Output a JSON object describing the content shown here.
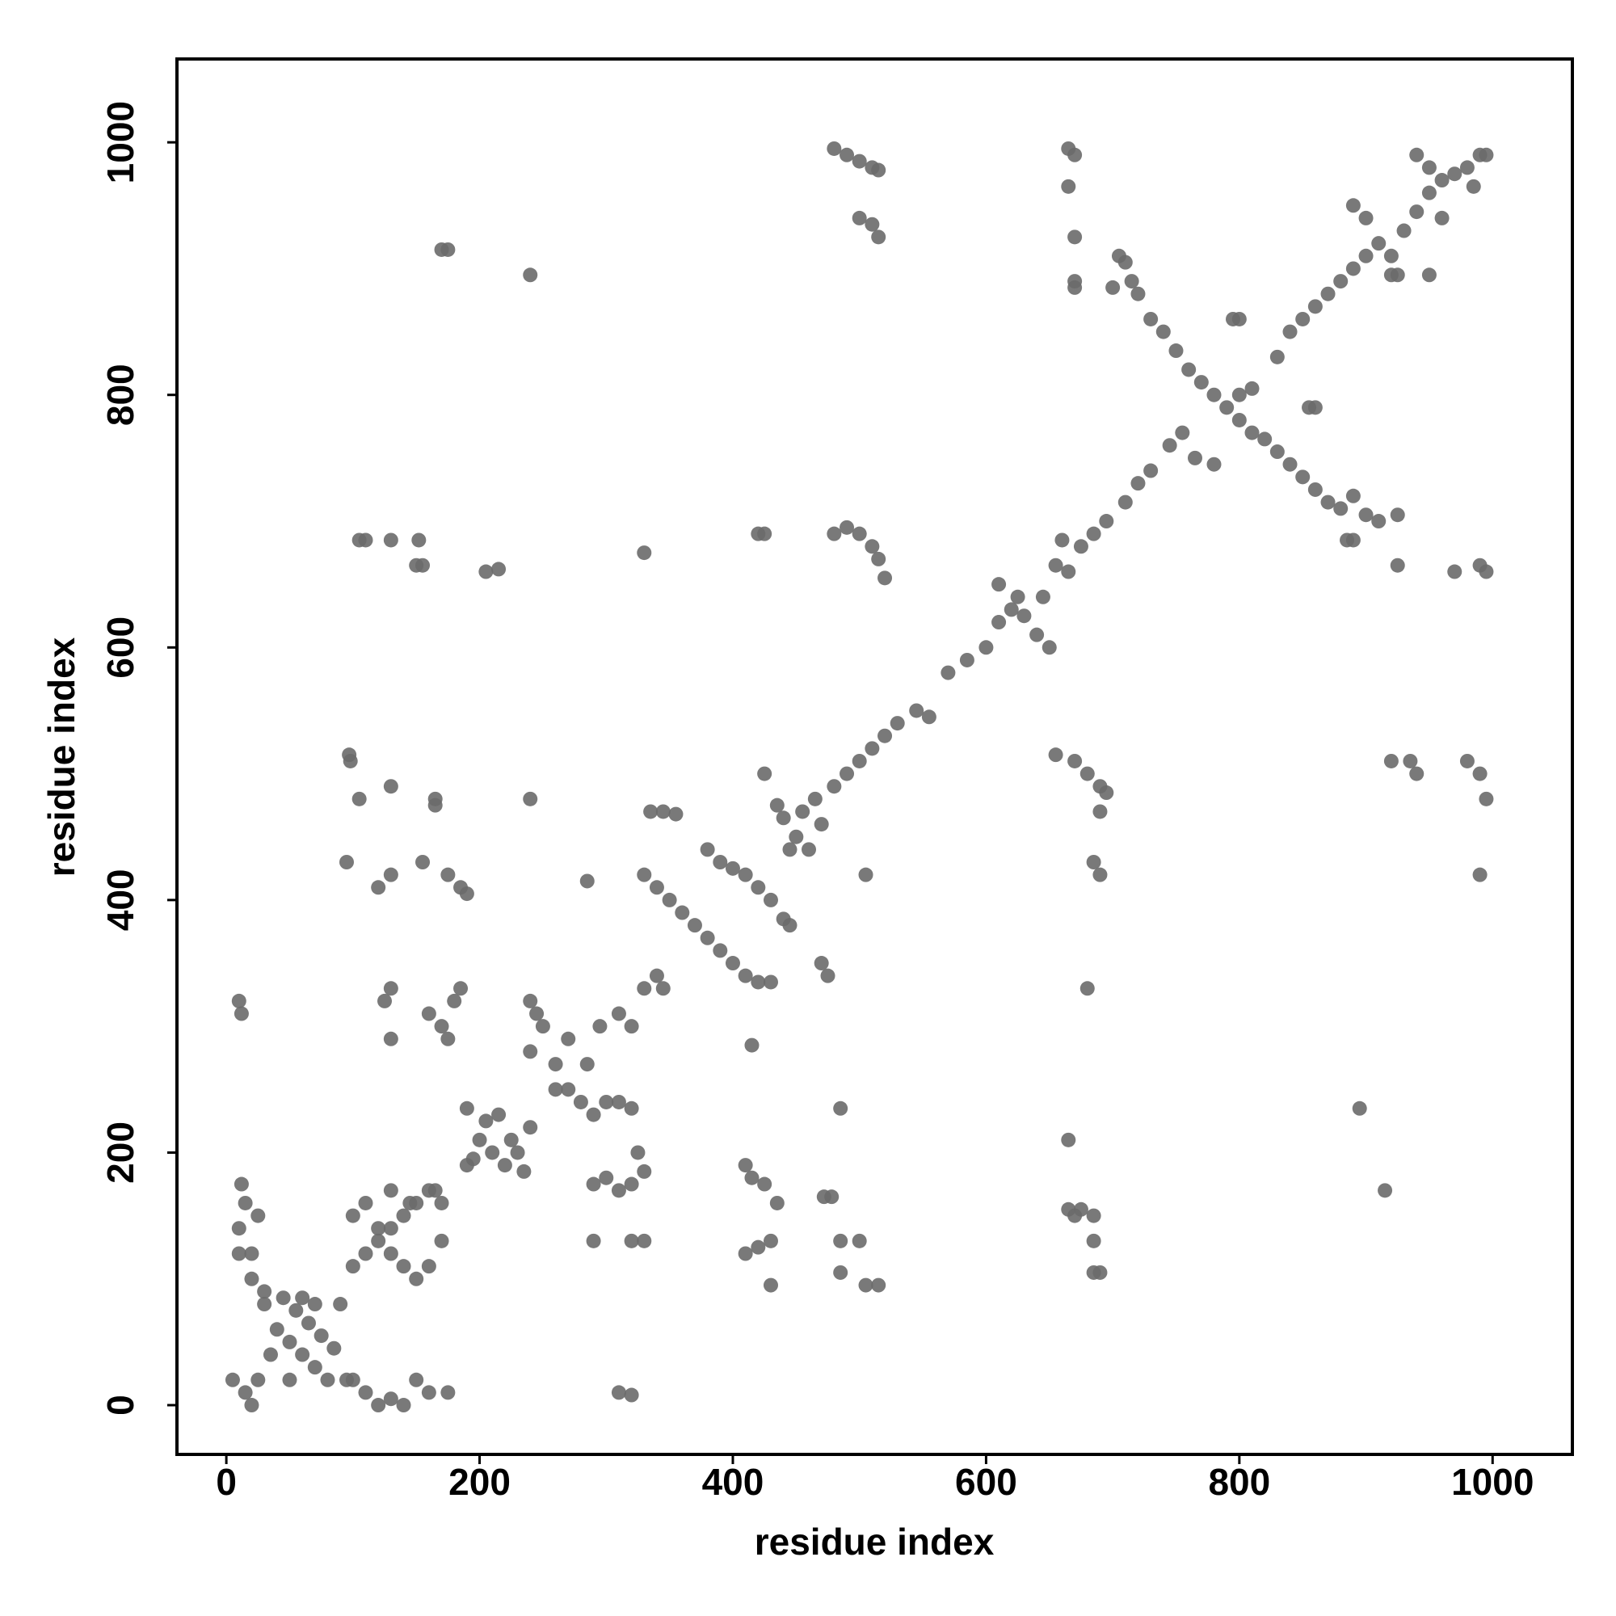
{
  "chart_data": {
    "type": "scatter",
    "xlabel": "residue index",
    "ylabel": "residue index",
    "xlim": [
      -39,
      1063
    ],
    "ylim": [
      -39,
      1066
    ],
    "xticks": [
      0,
      200,
      400,
      600,
      800,
      1000
    ],
    "yticks": [
      0,
      200,
      400,
      600,
      800,
      1000
    ],
    "color": "#6a6a6a",
    "grid": false,
    "x": [
      10,
      10,
      15,
      20,
      5,
      25,
      30,
      40,
      50,
      60,
      70,
      80,
      45,
      55,
      65,
      75,
      85,
      90,
      20,
      15,
      12,
      25,
      20,
      35,
      50,
      60,
      70,
      30,
      100,
      110,
      120,
      130,
      140,
      150,
      160,
      170,
      100,
      110,
      120,
      130,
      140,
      150,
      160,
      100,
      110,
      120,
      130,
      140,
      150,
      160,
      175,
      95,
      130,
      145,
      165,
      170,
      10,
      12,
      130,
      125,
      130,
      160,
      170,
      180,
      185,
      175,
      95,
      97,
      98,
      105,
      120,
      130,
      130,
      165,
      165,
      155,
      175,
      185,
      190,
      105,
      110,
      130,
      152,
      150,
      155,
      205,
      215,
      240,
      240,
      170,
      175,
      190,
      200,
      210,
      220,
      230,
      240,
      195,
      205,
      215,
      225,
      235,
      190,
      240,
      250,
      260,
      270,
      280,
      290,
      300,
      260,
      270,
      285,
      295,
      310,
      320,
      240,
      245,
      310,
      320,
      300,
      310,
      320,
      330,
      325,
      290,
      290,
      320,
      330,
      310,
      320,
      285,
      330,
      330,
      340,
      345,
      330,
      340,
      350,
      360,
      370,
      380,
      390,
      400,
      410,
      420,
      430,
      335,
      345,
      355,
      380,
      390,
      400,
      410,
      420,
      430,
      440,
      445,
      425,
      415,
      410,
      415,
      425,
      435,
      410,
      420,
      430,
      430,
      420,
      425,
      435,
      440,
      450,
      460,
      470,
      445,
      455,
      465,
      480,
      490,
      500,
      510,
      520,
      530,
      545,
      555,
      470,
      475,
      472,
      478,
      485,
      500,
      485,
      485,
      505,
      515,
      505,
      480,
      490,
      500,
      510,
      515,
      500,
      510,
      515,
      480,
      490,
      500,
      510,
      515,
      520,
      570,
      585,
      600,
      610,
      620,
      630,
      640,
      650,
      610,
      625,
      645,
      655,
      665,
      660,
      675,
      685,
      695,
      665,
      670,
      665,
      670,
      655,
      670,
      680,
      690,
      695,
      690,
      685,
      690,
      680,
      665,
      665,
      675,
      670,
      685,
      685,
      685,
      690,
      705,
      710,
      715,
      720,
      730,
      740,
      750,
      760,
      770,
      780,
      790,
      800,
      810,
      820,
      830,
      840,
      850,
      860,
      870,
      880,
      890,
      900,
      910,
      925,
      885,
      890,
      710,
      720,
      730,
      745,
      755,
      765,
      780,
      810,
      800,
      830,
      840,
      850,
      860,
      870,
      880,
      890,
      900,
      910,
      920,
      930,
      940,
      950,
      960,
      970,
      980,
      990,
      995,
      940,
      950,
      960,
      985,
      920,
      890,
      925,
      935,
      920,
      940,
      980,
      990,
      995,
      990,
      895,
      915,
      970,
      990,
      995,
      700,
      670,
      670,
      795,
      800,
      860,
      855,
      900,
      925,
      950
    ],
    "y": [
      140,
      120,
      10,
      0,
      20,
      20,
      80,
      60,
      50,
      40,
      30,
      20,
      85,
      75,
      65,
      55,
      45,
      80,
      100,
      160,
      175,
      150,
      120,
      40,
      20,
      85,
      80,
      90,
      150,
      160,
      140,
      120,
      110,
      100,
      110,
      130,
      110,
      120,
      130,
      140,
      150,
      160,
      170,
      20,
      10,
      0,
      5,
      0,
      20,
      10,
      10,
      20,
      170,
      160,
      170,
      160,
      320,
      310,
      330,
      320,
      290,
      310,
      300,
      320,
      330,
      290,
      430,
      515,
      510,
      480,
      410,
      420,
      490,
      480,
      475,
      430,
      420,
      410,
      405,
      685,
      685,
      685,
      685,
      665,
      665,
      660,
      662,
      895,
      480,
      915,
      915,
      235,
      210,
      200,
      190,
      200,
      220,
      195,
      225,
      230,
      210,
      185,
      190,
      280,
      300,
      270,
      250,
      240,
      230,
      240,
      250,
      290,
      270,
      300,
      310,
      300,
      320,
      310,
      240,
      235,
      180,
      170,
      175,
      185,
      200,
      175,
      130,
      130,
      130,
      10,
      8,
      415,
      675,
      330,
      340,
      330,
      420,
      410,
      400,
      390,
      380,
      370,
      360,
      350,
      340,
      335,
      335,
      470,
      470,
      468,
      440,
      430,
      425,
      420,
      410,
      400,
      385,
      380,
      500,
      285,
      190,
      180,
      175,
      160,
      120,
      125,
      130,
      95,
      690,
      690,
      475,
      465,
      450,
      440,
      460,
      440,
      470,
      480,
      490,
      500,
      510,
      520,
      530,
      540,
      550,
      545,
      350,
      340,
      165,
      165,
      130,
      130,
      105,
      235,
      95,
      95,
      420,
      995,
      990,
      985,
      980,
      978,
      940,
      935,
      925,
      690,
      695,
      690,
      680,
      670,
      655,
      580,
      590,
      600,
      620,
      630,
      625,
      610,
      600,
      650,
      640,
      640,
      665,
      660,
      685,
      680,
      690,
      700,
      995,
      990,
      965,
      925,
      515,
      510,
      500,
      490,
      485,
      470,
      430,
      420,
      330,
      210,
      155,
      155,
      150,
      150,
      130,
      105,
      105,
      910,
      905,
      890,
      880,
      860,
      850,
      835,
      820,
      810,
      800,
      790,
      780,
      770,
      765,
      755,
      745,
      735,
      725,
      715,
      710,
      720,
      705,
      700,
      705,
      685,
      685,
      715,
      730,
      740,
      760,
      770,
      750,
      745,
      805,
      800,
      830,
      850,
      860,
      870,
      880,
      890,
      900,
      910,
      920,
      910,
      930,
      945,
      960,
      970,
      975,
      980,
      990,
      990,
      990,
      980,
      940,
      965,
      895,
      950,
      665,
      510,
      510,
      500,
      510,
      500,
      480,
      420,
      235,
      170,
      660,
      665,
      660,
      885,
      885,
      890,
      860,
      860,
      790,
      790,
      940,
      895,
      895
    ]
  }
}
